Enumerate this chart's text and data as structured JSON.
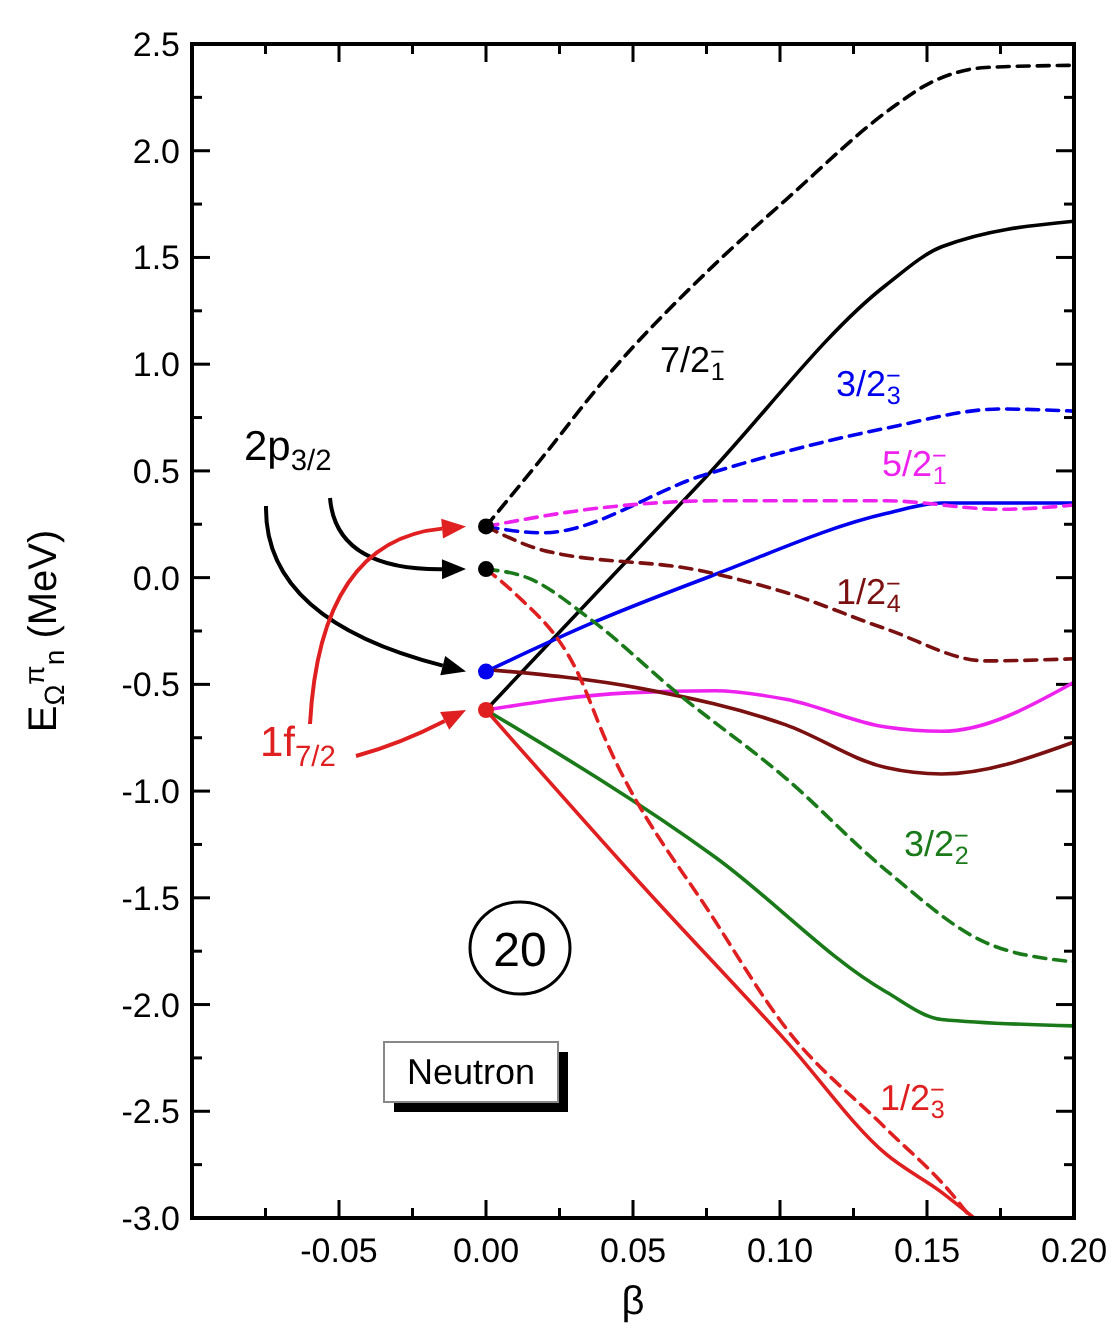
{
  "chart_data": {
    "type": "line",
    "xlabel": "β",
    "ylabel": "E$_{Ω}$$^{π}$$_{n}$ (MeV)",
    "xlim": [
      -0.1,
      0.2
    ],
    "xticks": [
      {
        "value": -0.075,
        "label": null
      },
      {
        "value": -0.05,
        "label": "-0.05"
      },
      {
        "value": -0.025,
        "label": null
      },
      {
        "value": 0,
        "label": "0.00"
      },
      {
        "value": 0.025,
        "label": null
      },
      {
        "value": 0.05,
        "label": "0.05"
      },
      {
        "value": 0.075,
        "label": null
      },
      {
        "value": 0.1,
        "label": "0.10"
      },
      {
        "value": 0.125,
        "label": null
      },
      {
        "value": 0.15,
        "label": "0.15"
      },
      {
        "value": 0.175,
        "label": null
      },
      {
        "value": 0.2,
        "label": "0.20"
      }
    ],
    "ylim": [
      -3.0,
      2.5
    ],
    "yticks": [
      {
        "value": -3,
        "label": "-3.0"
      },
      {
        "value": -2.75,
        "label": null
      },
      {
        "value": -2.5,
        "label": "-2.5"
      },
      {
        "value": -2.25,
        "label": null
      },
      {
        "value": -2,
        "label": "-2.0"
      },
      {
        "value": -1.75,
        "label": null
      },
      {
        "value": -1.5,
        "label": "-1.5"
      },
      {
        "value": -1.25,
        "label": null
      },
      {
        "value": -1,
        "label": "-1.0"
      },
      {
        "value": -0.75,
        "label": null
      },
      {
        "value": -0.5,
        "label": "-0.5"
      },
      {
        "value": -0.25,
        "label": null
      },
      {
        "value": 0,
        "label": "0.0"
      },
      {
        "value": 0.25,
        "label": null
      },
      {
        "value": 0.5,
        "label": "0.5"
      },
      {
        "value": 0.75,
        "label": null
      },
      {
        "value": 1,
        "label": "1.0"
      },
      {
        "value": 1.25,
        "label": null
      },
      {
        "value": 1.5,
        "label": "1.5"
      },
      {
        "value": 1.75,
        "label": null
      },
      {
        "value": 2,
        "label": "2.0"
      },
      {
        "value": 2.25,
        "label": null
      },
      {
        "value": 2.5,
        "label": "2.5"
      }
    ],
    "series": [
      {
        "name": "7/2$^{−}$$_{1}$",
        "color": "#000000",
        "line_style": "dashed",
        "x": [
          0,
          0.019,
          0.041,
          0.078,
          0.102,
          0.138,
          0.15,
          0.17,
          0.2
        ],
        "values": [
          0.24,
          0.56,
          0.94,
          1.47,
          1.77,
          2.2,
          2.31,
          2.39,
          2.4
        ]
      },
      {
        "color": "#000000",
        "x": [
          0,
          0.074,
          0.136,
          0.155,
          0.2
        ],
        "values": [
          -0.62,
          0.46,
          1.37,
          1.55,
          1.67
        ]
      },
      {
        "name": "3/2$^{−}$$_{3}$",
        "color": "#0000ee",
        "line_style": "dashed",
        "x": [
          0,
          0.019,
          0.074,
          0.136,
          0.175,
          0.2
        ],
        "values": [
          0.24,
          0.21,
          0.48,
          0.7,
          0.79,
          0.78
        ]
      },
      {
        "color": "#0000ee",
        "x": [
          0,
          0.0365,
          0.077,
          0.136,
          0.155,
          0.2
        ],
        "values": [
          -0.44,
          -0.21,
          0.01,
          0.3,
          0.35,
          0.35
        ]
      },
      {
        "name": "5/2$^{−}$$_{1}$",
        "color": "#ee22ee",
        "line_style": "dashed",
        "x": [
          0,
          0.041,
          0.078,
          0.136,
          0.175,
          0.2
        ],
        "values": [
          0.24,
          0.33,
          0.36,
          0.36,
          0.32,
          0.34
        ]
      },
      {
        "color": "#ee22ee",
        "x": [
          0,
          0.048,
          0.078,
          0.102,
          0.136,
          0.155,
          0.2
        ],
        "values": [
          -0.62,
          -0.54,
          -0.53,
          -0.57,
          -0.7,
          -0.72,
          -0.49
        ]
      },
      {
        "name": "1/2$^{−}$$_{4}$",
        "color": "#7a1010",
        "line_style": "dashed",
        "x": [
          0,
          0.019,
          0.074,
          0.102,
          0.136,
          0.17,
          0.2
        ],
        "values": [
          0.24,
          0.13,
          0.03,
          -0.07,
          -0.24,
          -0.39,
          -0.38
        ]
      },
      {
        "color": "#7a1010",
        "x": [
          0,
          0.053,
          0.102,
          0.136,
          0.155,
          0.2
        ],
        "values": [
          -0.43,
          -0.52,
          -0.69,
          -0.89,
          -0.92,
          -0.77
        ]
      },
      {
        "name": "3/2$^{−}$$_{2}$",
        "color": "#1a7a1a",
        "line_style": "dashed",
        "x": [
          0,
          0.014,
          0.036,
          0.065,
          0.102,
          0.136,
          0.17,
          0.2
        ],
        "values": [
          0.04,
          0.0,
          -0.2,
          -0.54,
          -0.94,
          -1.37,
          -1.71,
          -1.8
        ]
      },
      {
        "color": "#1a7a1a",
        "x": [
          0,
          0.078,
          0.136,
          0.155,
          0.2
        ],
        "values": [
          -0.62,
          -1.31,
          -1.94,
          -2.07,
          -2.1
        ]
      },
      {
        "name": "1/2$^{−}$$_{3}$",
        "color": "#e02020",
        "line_style": "dashed",
        "x": [
          0,
          0.0095,
          0.031,
          0.041,
          0.078,
          0.102,
          0.136,
          0.158,
          0.165
        ],
        "values": [
          0.04,
          -0.07,
          -0.44,
          -0.77,
          -1.61,
          -2.11,
          -2.58,
          -2.88,
          -3.0
        ]
      },
      {
        "color": "#e02020",
        "x": [
          0,
          0.053,
          0.102,
          0.136,
          0.155,
          0.166
        ],
        "values": [
          -0.62,
          -1.44,
          -2.17,
          -2.7,
          -2.88,
          -3.0
        ]
      },
      {
        "type": "scatter",
        "marker": "circle",
        "x": [
          0,
          0,
          0,
          0
        ],
        "values": [
          0.24,
          0.04,
          -0.44,
          -0.62
        ],
        "colors": [
          "#000000",
          "#000000",
          "#0000ee",
          "#e02020"
        ]
      }
    ],
    "annotations": [
      "2p$_{3/2}$",
      "1f$_{7/2}$",
      "20",
      "Neutron"
    ]
  }
}
